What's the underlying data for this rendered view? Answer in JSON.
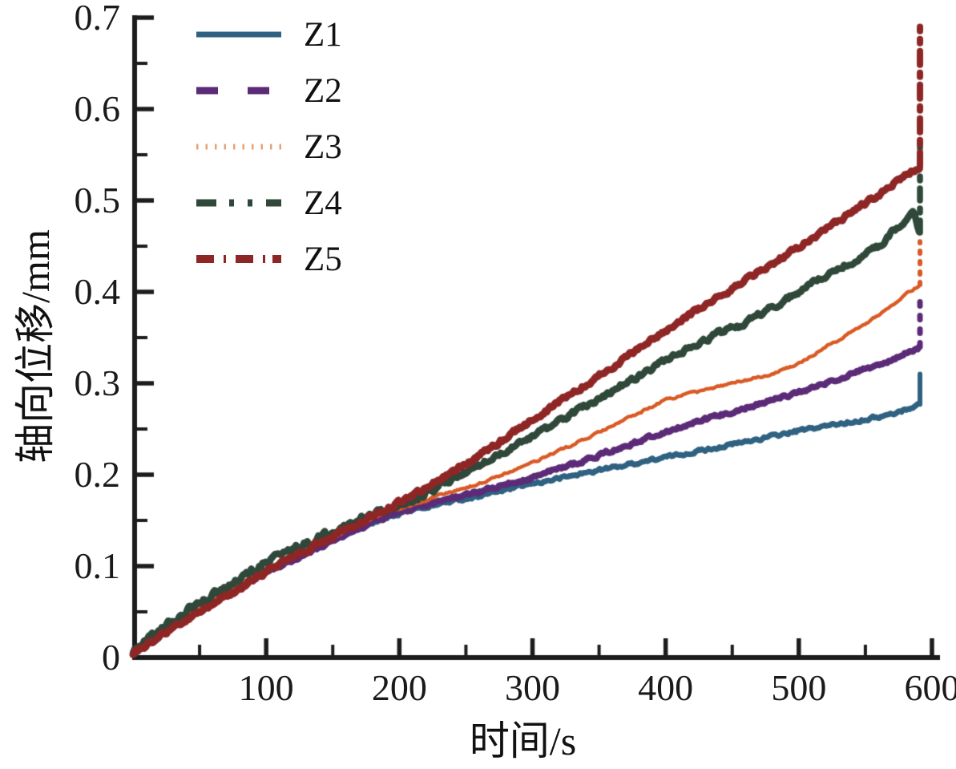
{
  "chart_data": {
    "type": "line",
    "title": "",
    "xlabel": "时间/s",
    "ylabel": "轴向位移/mm",
    "xlim": [
      0,
      600
    ],
    "ylim": [
      0,
      0.7
    ],
    "grid": false,
    "legend_position": "top-left",
    "x_ticks": [
      100,
      200,
      300,
      400,
      500,
      600
    ],
    "x_minor_tick_step": 50,
    "y_ticks": [
      {
        "value": 0.0,
        "label": "0"
      },
      {
        "value": 0.1,
        "label": "0.1"
      },
      {
        "value": 0.2,
        "label": "0.2"
      },
      {
        "value": 0.3,
        "label": "0.3"
      },
      {
        "value": 0.4,
        "label": "0.4"
      },
      {
        "value": 0.5,
        "label": "0.5"
      },
      {
        "value": 0.6,
        "label": "0.6"
      },
      {
        "value": 0.7,
        "label": "0.7"
      }
    ],
    "y_minor_tick_step": 0.05,
    "axis_color": "#1c1c1c",
    "series": [
      {
        "name": "Z1",
        "color": "#2f6181",
        "line_style": "solid",
        "legend_dash": "",
        "legend_stroke": 7,
        "width": 7,
        "x": [
          0,
          30,
          60,
          100,
          140,
          180,
          200,
          230,
          260,
          300,
          350,
          400,
          450,
          500,
          540,
          570,
          591
        ],
        "values": [
          0.004,
          0.035,
          0.062,
          0.095,
          0.122,
          0.148,
          0.158,
          0.168,
          0.177,
          0.19,
          0.205,
          0.219,
          0.233,
          0.248,
          0.258,
          0.266,
          0.277
        ],
        "end_spike": 0.31,
        "spike_dash": []
      },
      {
        "name": "Z2",
        "color": "#5c2b78",
        "line_style": "dashed",
        "legend_dash": "27 37",
        "legend_stroke": 9,
        "width": 8,
        "x": [
          0,
          30,
          60,
          100,
          140,
          180,
          200,
          230,
          260,
          300,
          350,
          400,
          450,
          500,
          540,
          570,
          591
        ],
        "values": [
          0.004,
          0.034,
          0.06,
          0.093,
          0.12,
          0.148,
          0.159,
          0.17,
          0.181,
          0.197,
          0.221,
          0.247,
          0.269,
          0.29,
          0.31,
          0.325,
          0.34
        ],
        "end_spike": 0.39,
        "spike_dash": [
          5,
          12
        ]
      },
      {
        "name": "Z3",
        "color": "#d95a25",
        "legend_color": "#e8a273",
        "line_style": "dotted",
        "legend_dash": "2.5 9",
        "legend_stroke": 7,
        "width": 4.5,
        "x": [
          0,
          30,
          60,
          100,
          140,
          180,
          200,
          230,
          260,
          300,
          350,
          400,
          450,
          480,
          500,
          550,
          591
        ],
        "values": [
          0.004,
          0.036,
          0.063,
          0.096,
          0.124,
          0.153,
          0.163,
          0.177,
          0.19,
          0.213,
          0.246,
          0.282,
          0.3,
          0.31,
          0.322,
          0.365,
          0.408
        ],
        "end_spike": 0.455,
        "spike_dash": [
          3,
          10
        ]
      },
      {
        "name": "Z4",
        "color": "#2f483a",
        "line_style": "dash-dot-dot",
        "legend_dash": "25 16 6 17 6 17",
        "legend_stroke": 9,
        "width": 8.5,
        "x": [
          0,
          20,
          40,
          60,
          100,
          140,
          180,
          200,
          240,
          280,
          320,
          360,
          400,
          440,
          455,
          470,
          500,
          530,
          560,
          575,
          586,
          591
        ],
        "values": [
          0.006,
          0.03,
          0.05,
          0.068,
          0.104,
          0.131,
          0.156,
          0.168,
          0.195,
          0.225,
          0.258,
          0.292,
          0.325,
          0.355,
          0.362,
          0.375,
          0.4,
          0.425,
          0.45,
          0.472,
          0.487,
          0.465
        ],
        "end_spike": 0.57,
        "spike_dash": [
          15,
          10,
          5,
          10
        ]
      },
      {
        "name": "Z5",
        "color": "#8f2626",
        "line_style": "dash-dot",
        "legend_dash": "22 12 3 12 22 12 3 9",
        "legend_stroke": 10,
        "width": 9,
        "x": [
          0,
          30,
          60,
          100,
          140,
          180,
          200,
          240,
          280,
          320,
          360,
          400,
          440,
          480,
          520,
          560,
          591
        ],
        "values": [
          0.004,
          0.033,
          0.058,
          0.094,
          0.125,
          0.155,
          0.17,
          0.203,
          0.24,
          0.28,
          0.318,
          0.358,
          0.395,
          0.43,
          0.468,
          0.507,
          0.538
        ],
        "end_spike": 0.69,
        "spike_dash": [
          17,
          10,
          5,
          10
        ]
      }
    ]
  }
}
